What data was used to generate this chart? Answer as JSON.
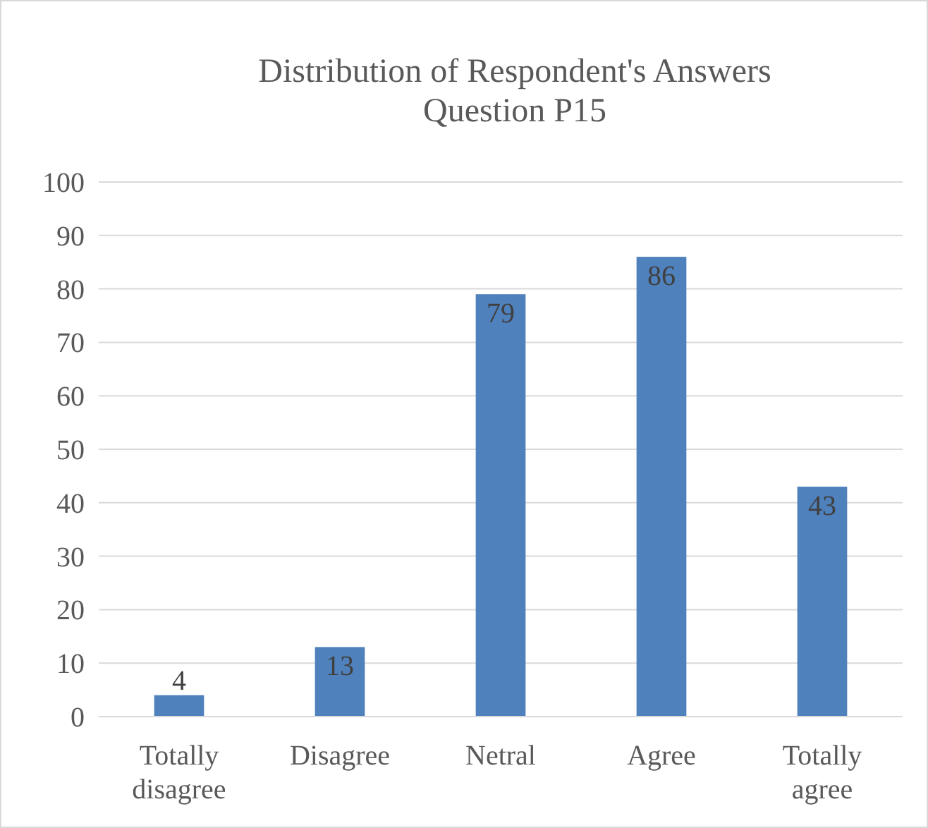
{
  "chart_data": {
    "type": "bar",
    "title": "Distribution of Respondent's Answers Question P15",
    "categories": [
      "Totally disagree",
      "Disagree",
      "Netral",
      "Agree",
      "Totally agree"
    ],
    "values": [
      4,
      13,
      79,
      86,
      43
    ],
    "color": "#4f81bd",
    "ylim": [
      0,
      100
    ],
    "yticks": [
      0,
      10,
      20,
      30,
      40,
      50,
      60,
      70,
      80,
      90,
      100
    ],
    "grid": "y",
    "data_labels": true
  }
}
